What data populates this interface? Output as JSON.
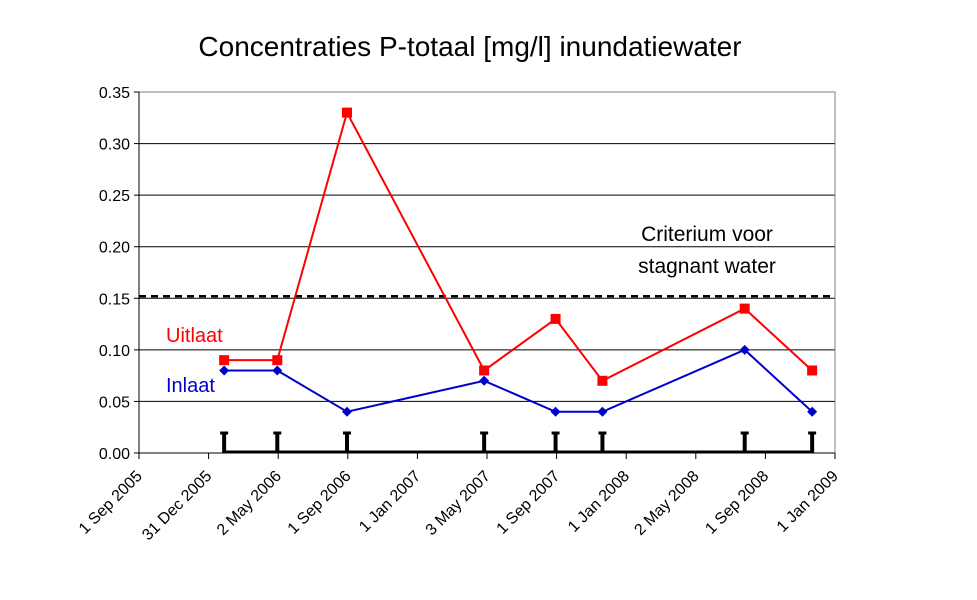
{
  "chart_data": {
    "type": "line",
    "title": "Concentraties P-totaal [mg/l] inundatiewater",
    "xlabel": "",
    "ylabel": "",
    "ylim": [
      0,
      0.35
    ],
    "yticks": [
      "0.00",
      "0.05",
      "0.10",
      "0.15",
      "0.20",
      "0.25",
      "0.30",
      "0.35"
    ],
    "xticks": [
      "1 Sep 2005",
      "31 Dec 2005",
      "2 May 2006",
      "1 Sep 2006",
      "1 Jan 2007",
      "3 May 2007",
      "1 Sep 2007",
      "1 Jan 2008",
      "2 May 2008",
      "1 Sep 2008",
      "1 Jan 2009"
    ],
    "grid": "horizontal",
    "threshold": {
      "value": 0.152,
      "label_line1": "Criterium voor",
      "label_line2": "stagnant water",
      "style": "dashed",
      "color": "#000000"
    },
    "series": [
      {
        "name": "Uitlaat",
        "color": "#ff0000",
        "marker": "square",
        "x": [
          "2006-01-28",
          "2006-05-01",
          "2006-08-31",
          "2007-04-28",
          "2007-08-31",
          "2007-11-21",
          "2008-07-27",
          "2008-11-22"
        ],
        "y": [
          0.09,
          0.09,
          0.33,
          0.08,
          0.13,
          0.07,
          0.14,
          0.08
        ]
      },
      {
        "name": "Inlaat",
        "color": "#0000cc",
        "marker": "diamond",
        "x": [
          "2006-01-28",
          "2006-05-01",
          "2006-08-31",
          "2007-04-28",
          "2007-08-31",
          "2007-11-21",
          "2008-07-27",
          "2008-11-22"
        ],
        "y": [
          0.08,
          0.08,
          0.04,
          0.07,
          0.04,
          0.04,
          0.1,
          0.04
        ]
      }
    ],
    "sampling_dates": [
      "2006-01-28",
      "2006-05-01",
      "2006-08-31",
      "2007-04-28",
      "2007-08-31",
      "2007-11-21",
      "2008-07-27",
      "2008-11-22"
    ],
    "sampling_color": "#000000"
  }
}
